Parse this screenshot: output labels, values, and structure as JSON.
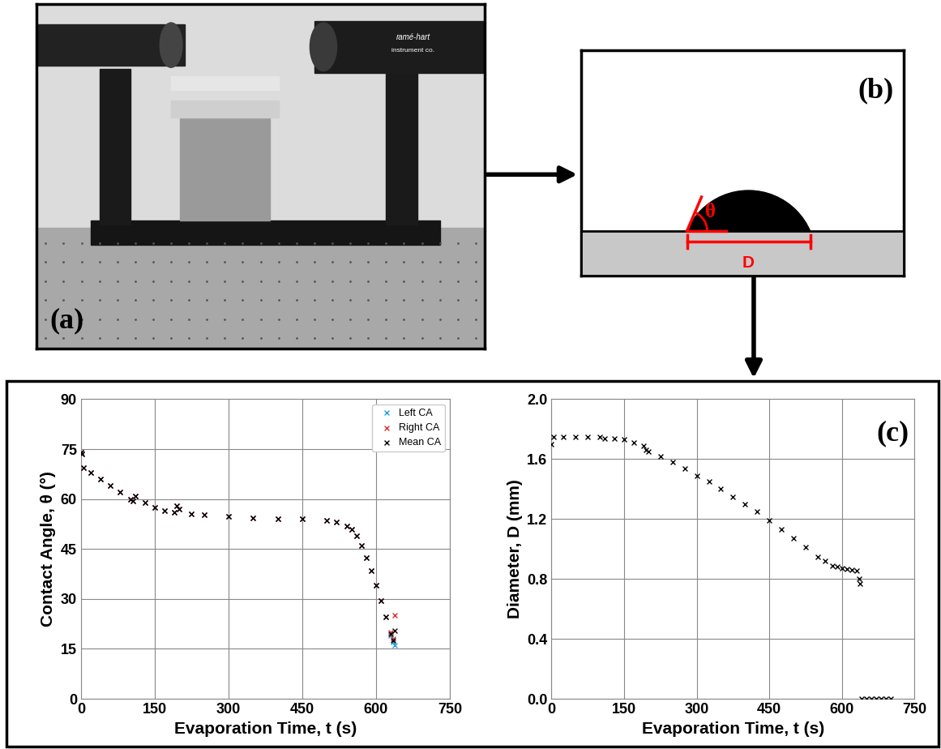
{
  "panels": {
    "a": {
      "label": "(a)",
      "photo_texts": [
        "ramé-hart",
        "instrument co."
      ]
    },
    "b": {
      "label": "(b)",
      "angle_symbol": "θ",
      "diameter_symbol": "D"
    },
    "c": {
      "label": "(c)"
    }
  },
  "chart_data": [
    {
      "type": "scatter",
      "x_label": "Evaporation Time, t (s)",
      "y_label": "Contact Angle, θ (°)",
      "xlim": [
        0,
        750
      ],
      "xticks": [
        0,
        150,
        300,
        450,
        600,
        750
      ],
      "ylim": [
        0,
        90
      ],
      "yticks": [
        0,
        15,
        30,
        45,
        60,
        75,
        90
      ],
      "grid": true,
      "legend": "upper right",
      "series": [
        {
          "name": "Left CA",
          "color": "#1fa0e0",
          "marker": "x",
          "x": [
            0,
            2,
            5,
            20,
            40,
            60,
            80,
            100,
            105,
            110,
            130,
            150,
            170,
            190,
            195,
            200,
            225,
            250,
            300,
            350,
            400,
            450,
            500,
            520,
            540,
            550,
            560,
            570,
            580,
            590,
            600,
            610,
            620,
            630,
            635,
            638
          ],
          "values": [
            74,
            73.5,
            69.5,
            68,
            66,
            64,
            62,
            60,
            59.5,
            61,
            59,
            57.5,
            56.5,
            56,
            58,
            57,
            55.5,
            55.2,
            54.8,
            54.3,
            54,
            54,
            53.5,
            53,
            52,
            51,
            49,
            46,
            42.5,
            38.5,
            34,
            29.5,
            24.5,
            19,
            17,
            16
          ]
        },
        {
          "name": "Right CA",
          "color": "#e03030",
          "marker": "x",
          "x": [
            0,
            2,
            5,
            20,
            40,
            60,
            80,
            100,
            105,
            110,
            130,
            150,
            170,
            190,
            195,
            200,
            225,
            250,
            300,
            350,
            400,
            450,
            500,
            520,
            540,
            550,
            560,
            570,
            580,
            590,
            600,
            610,
            620,
            630,
            635,
            638
          ],
          "values": [
            74,
            73.5,
            69.5,
            68,
            66,
            64,
            62,
            60,
            59.5,
            61,
            59,
            57.5,
            56.5,
            56,
            58,
            57,
            55.5,
            55.2,
            54.8,
            54.3,
            54,
            54,
            53.5,
            53,
            52,
            51,
            49,
            46,
            42.5,
            38.5,
            34,
            29.5,
            24.5,
            20,
            18,
            25
          ]
        },
        {
          "name": "Mean CA",
          "color": "#000000",
          "marker": "x",
          "x": [
            0,
            2,
            5,
            20,
            40,
            60,
            80,
            100,
            105,
            110,
            130,
            150,
            170,
            190,
            195,
            200,
            225,
            250,
            300,
            350,
            400,
            450,
            500,
            520,
            540,
            550,
            560,
            570,
            580,
            590,
            600,
            610,
            620,
            630,
            635,
            638
          ],
          "values": [
            74,
            73.5,
            69.5,
            68,
            66,
            64,
            62,
            60,
            59.5,
            61,
            59,
            57.5,
            56.5,
            56,
            58,
            57,
            55.5,
            55.2,
            54.8,
            54.3,
            54,
            54,
            53.5,
            53,
            52,
            51,
            49,
            46,
            42.5,
            38.5,
            34,
            29.5,
            24.5,
            19.5,
            17.5,
            20.5
          ]
        }
      ]
    },
    {
      "type": "scatter",
      "x_label": "Evaporation Time, t (s)",
      "y_label": "Diameter, D (mm)",
      "xlim": [
        0,
        750
      ],
      "xticks": [
        0,
        150,
        300,
        450,
        600,
        750
      ],
      "ylim": [
        0.0,
        2.0
      ],
      "yticks": [
        0.0,
        0.4,
        0.8,
        1.2,
        1.6,
        2.0
      ],
      "grid": true,
      "series": [
        {
          "color": "#000000",
          "marker": "x",
          "x": [
            0,
            5,
            25,
            50,
            75,
            100,
            110,
            130,
            150,
            170,
            190,
            195,
            200,
            225,
            250,
            275,
            300,
            325,
            350,
            375,
            400,
            425,
            450,
            475,
            500,
            525,
            550,
            565,
            580,
            590,
            600,
            610,
            620,
            630,
            635,
            637,
            640,
            650,
            660,
            670,
            680,
            690,
            700
          ],
          "values": [
            1.7,
            1.75,
            1.75,
            1.75,
            1.75,
            1.75,
            1.74,
            1.735,
            1.73,
            1.71,
            1.69,
            1.66,
            1.65,
            1.62,
            1.58,
            1.54,
            1.49,
            1.45,
            1.4,
            1.35,
            1.3,
            1.25,
            1.19,
            1.13,
            1.07,
            1.01,
            0.95,
            0.92,
            0.89,
            0.88,
            0.87,
            0.865,
            0.86,
            0.855,
            0.8,
            0.77,
            0.0,
            0.0,
            0.0,
            0.0,
            0.0,
            0.0,
            0.0
          ]
        }
      ]
    }
  ]
}
